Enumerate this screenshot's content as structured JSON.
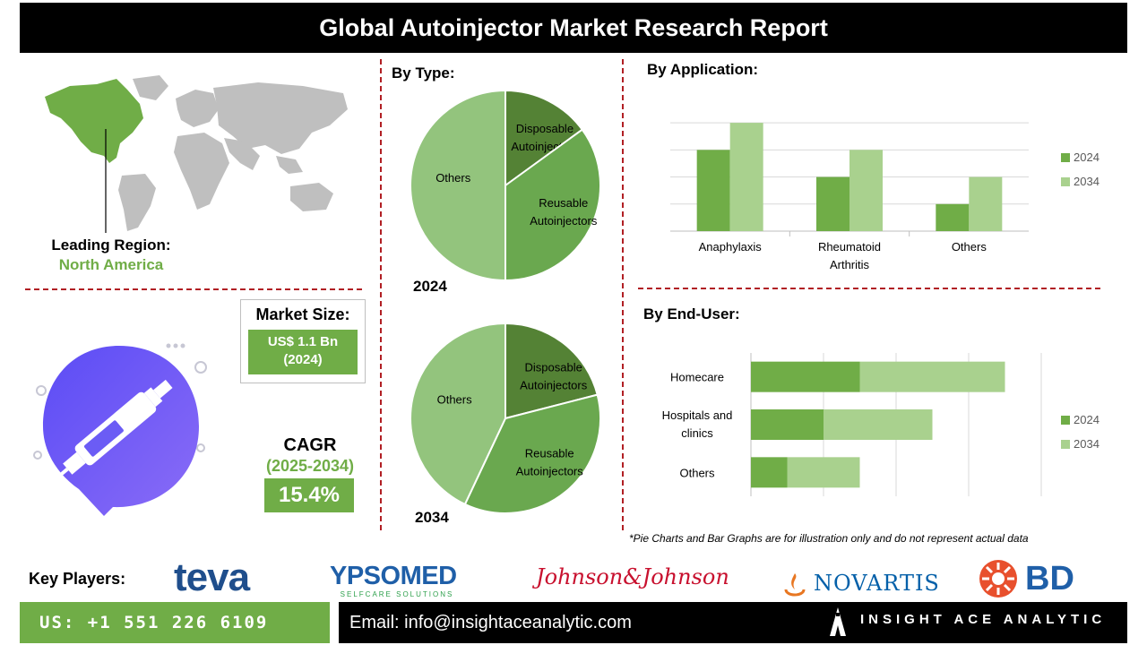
{
  "title": "Global Autoinjector Market Research Report",
  "region": {
    "label": "Leading Region:",
    "value": "North America"
  },
  "market_size": {
    "label": "Market Size:",
    "value_line1": "US$ 1.1 Bn",
    "value_line2": "(2024)"
  },
  "cagr": {
    "label": "CAGR",
    "years": "(2025-2034)",
    "value": "15.4%"
  },
  "headings": {
    "type": "By Type:",
    "application": "By Application:",
    "end_user": "By End-User:"
  },
  "note": "*Pie Charts and Bar Graphs are for illustration only and do not represent actual data",
  "key_players": {
    "label": "Key Players:",
    "teva": "teva",
    "ypsomed": "YPSOMED",
    "ypsomed_tag": "SELFCARE SOLUTIONS",
    "jnj": "Johnson&Johnson",
    "novartis": "NOVARTIS",
    "bd": "BD"
  },
  "footer": {
    "phone": "US: +1 551 226 6109",
    "email": "Email: info@insightaceanalytic.com",
    "brand": "INSIGHT ACE ANALYTIC"
  },
  "colors": {
    "dark_green": "#548235",
    "mid_green": "#70ad47",
    "light_green": "#a9d18e",
    "pie_light": "#93c47d",
    "pie_mid": "#6aa84f",
    "pie_dark": "#548235",
    "red_dash": "#b11f24"
  },
  "chart_data": [
    {
      "type": "pie",
      "title": "2024",
      "slices": [
        {
          "label_line1": "Disposable",
          "label_line2": "Autoinjectors",
          "value": 15
        },
        {
          "label_line1": "Reusable",
          "label_line2": "Autoinjectors",
          "value": 35
        },
        {
          "label_line1": "Others",
          "label_line2": "",
          "value": 50
        }
      ]
    },
    {
      "type": "pie",
      "title": "2034",
      "slices": [
        {
          "label_line1": "Disposable",
          "label_line2": "Autoinjectors",
          "value": 21
        },
        {
          "label_line1": "Reusable",
          "label_line2": "Autoinjectors",
          "value": 36
        },
        {
          "label_line1": "Others",
          "label_line2": "",
          "value": 43
        }
      ]
    },
    {
      "type": "bar",
      "categories": [
        [
          "Anaphylaxis"
        ],
        [
          "Rheumatoid",
          "Arthritis"
        ],
        [
          "Others"
        ]
      ],
      "series": [
        {
          "name": "2024",
          "values": [
            3,
            2,
            1
          ]
        },
        {
          "name": "2034",
          "values": [
            4,
            3,
            2
          ]
        }
      ],
      "ylim": [
        0,
        4.5
      ],
      "grid": true,
      "legend": "right"
    },
    {
      "type": "bar",
      "orientation": "horizontal",
      "stacked": true,
      "categories": [
        [
          "Homecare"
        ],
        [
          "Hospitals and",
          "clinics"
        ],
        [
          "Others"
        ]
      ],
      "series": [
        {
          "name": "2024",
          "values": [
            3,
            2,
            1
          ]
        },
        {
          "name": "2034",
          "values": [
            4,
            3,
            2
          ]
        }
      ],
      "xlim": [
        0,
        8
      ],
      "grid": true,
      "legend": "right"
    }
  ]
}
